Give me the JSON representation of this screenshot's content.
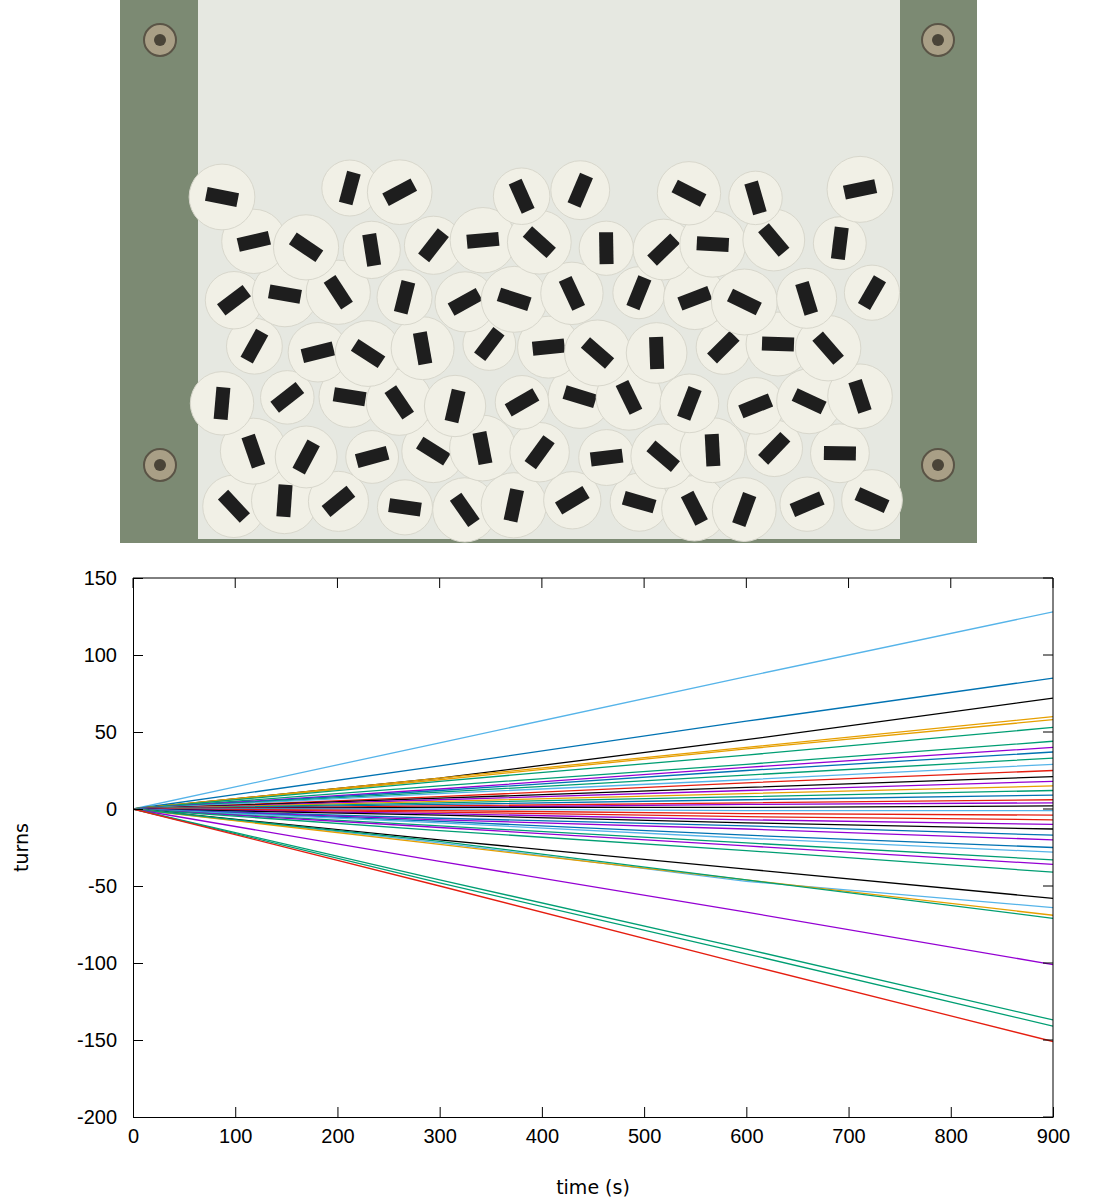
{
  "chart_data": {
    "type": "line",
    "xlabel": "time (s)",
    "ylabel": "turns",
    "x": [
      0,
      300,
      600,
      900
    ],
    "xlim": [
      0,
      900
    ],
    "ylim": [
      -200,
      150
    ],
    "xticks": [
      0,
      100,
      200,
      300,
      400,
      500,
      600,
      700,
      800,
      900
    ],
    "yticks": [
      -200,
      -150,
      -100,
      -50,
      0,
      50,
      100,
      150
    ],
    "grid": false,
    "series": [
      {
        "color": "#56b4e9",
        "values": [
          0,
          43,
          86,
          128
        ]
      },
      {
        "color": "#0072b2",
        "values": [
          0,
          28,
          57,
          85
        ]
      },
      {
        "color": "#000000",
        "values": [
          0,
          20,
          45,
          72
        ]
      },
      {
        "color": "#e69f00",
        "values": [
          0,
          20,
          40,
          60
        ]
      },
      {
        "color": "#e69f00",
        "values": [
          0,
          19,
          39,
          58
        ]
      },
      {
        "color": "#009e73",
        "values": [
          0,
          18,
          35,
          53
        ]
      },
      {
        "color": "#009e73",
        "values": [
          0,
          15,
          29,
          44
        ]
      },
      {
        "color": "#9400d3",
        "values": [
          0,
          13,
          27,
          40
        ]
      },
      {
        "color": "#0072b2",
        "values": [
          0,
          12,
          25,
          37
        ]
      },
      {
        "color": "#009e73",
        "values": [
          0,
          11,
          22,
          33
        ]
      },
      {
        "color": "#56b4e9",
        "values": [
          0,
          10,
          19,
          29
        ]
      },
      {
        "color": "#e51e10",
        "values": [
          0,
          8,
          17,
          25
        ]
      },
      {
        "color": "#000000",
        "values": [
          0,
          7,
          14,
          21
        ]
      },
      {
        "color": "#9400d3",
        "values": [
          0,
          6,
          12,
          18
        ]
      },
      {
        "color": "#e69f00",
        "values": [
          0,
          5,
          10,
          15
        ]
      },
      {
        "color": "#009e73",
        "values": [
          0,
          4,
          8,
          12
        ]
      },
      {
        "color": "#0072b2",
        "values": [
          0,
          3,
          6,
          9
        ]
      },
      {
        "color": "#e51e10",
        "values": [
          0,
          2,
          4,
          6
        ]
      },
      {
        "color": "#9400d3",
        "values": [
          0,
          1,
          3,
          4
        ]
      },
      {
        "color": "#000000",
        "values": [
          0,
          1,
          1,
          2
        ]
      },
      {
        "color": "#56b4e9",
        "values": [
          0,
          0,
          -1,
          -1
        ]
      },
      {
        "color": "#e51e10",
        "values": [
          0,
          -1,
          -3,
          -4
        ]
      },
      {
        "color": "#e51e10",
        "values": [
          0,
          -2,
          -5,
          -7
        ]
      },
      {
        "color": "#9400d3",
        "values": [
          0,
          -3,
          -7,
          -10
        ]
      },
      {
        "color": "#000000",
        "values": [
          0,
          -4,
          -9,
          -13
        ]
      },
      {
        "color": "#0072b2",
        "values": [
          0,
          -6,
          -11,
          -17
        ]
      },
      {
        "color": "#9400d3",
        "values": [
          0,
          -7,
          -13,
          -20
        ]
      },
      {
        "color": "#0072b2",
        "values": [
          0,
          -8,
          -17,
          -25
        ]
      },
      {
        "color": "#56b4e9",
        "values": [
          0,
          -9,
          -19,
          -28
        ]
      },
      {
        "color": "#009e73",
        "values": [
          0,
          -11,
          -22,
          -33
        ]
      },
      {
        "color": "#9400d3",
        "values": [
          0,
          -12,
          -24,
          -36
        ]
      },
      {
        "color": "#009e73",
        "values": [
          0,
          -14,
          -27,
          -41
        ]
      },
      {
        "color": "#000000",
        "values": [
          0,
          -20,
          -39,
          -58
        ]
      },
      {
        "color": "#56b4e9",
        "values": [
          0,
          -22,
          -47,
          -64
        ]
      },
      {
        "color": "#e69f00",
        "values": [
          0,
          -23,
          -46,
          -69
        ]
      },
      {
        "color": "#009e73",
        "values": [
          0,
          -21,
          -46,
          -71
        ]
      },
      {
        "color": "#9400d3",
        "values": [
          0,
          -34,
          -67,
          -101
        ]
      },
      {
        "color": "#009e73",
        "values": [
          0,
          -46,
          -91,
          -137
        ]
      },
      {
        "color": "#009e73",
        "values": [
          0,
          -48,
          -94,
          -141
        ]
      },
      {
        "color": "#e51e10",
        "values": [
          0,
          -50,
          -101,
          -151
        ]
      }
    ]
  }
}
